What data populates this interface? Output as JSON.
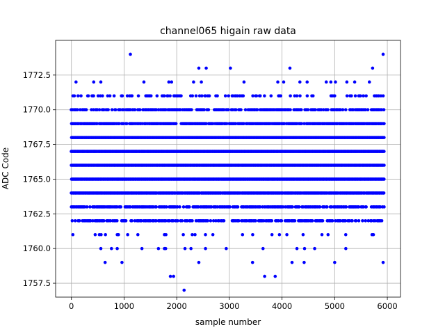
{
  "chart_data": {
    "type": "scatter",
    "title": "channel065 higain raw data",
    "xlabel": "sample number",
    "ylabel": "ADC Code",
    "xlim": [
      -300,
      6250
    ],
    "ylim": [
      1756.5,
      1775.0
    ],
    "xticks": [
      0,
      1000,
      2000,
      3000,
      4000,
      5000,
      6000
    ],
    "xtick_labels": [
      "0",
      "1000",
      "2000",
      "3000",
      "4000",
      "5000",
      "6000"
    ],
    "yticks": [
      1757.5,
      1760.0,
      1762.5,
      1765.0,
      1767.5,
      1770.0,
      1772.5
    ],
    "ytick_labels": [
      "1757.5",
      "1760.0",
      "1762.5",
      "1765.0",
      "1767.5",
      "1770.0",
      "1772.5"
    ],
    "grid": true,
    "marker_color": "#0000ff",
    "series": [
      {
        "x_range": [
          0,
          5940
        ],
        "dense_levels": [
          1762,
          1763,
          1764,
          1765,
          1766,
          1767,
          1768,
          1769,
          1770,
          1771
        ],
        "level_density": {
          "1762": 0.55,
          "1763": 0.6,
          "1764": 0.95,
          "1765": 1.0,
          "1766": 1.0,
          "1767": 1.0,
          "1768": 1.0,
          "1769": 0.8,
          "1770": 0.55,
          "1771": 0.25
        },
        "sparse_levels": [
          1761,
          1760,
          1772
        ],
        "sparse_density": {
          "1761": 0.18,
          "1760": 0.05,
          "1772": 0.1
        },
        "outliers": [
          {
            "x": 1120,
            "y": 1774
          },
          {
            "x": 5920,
            "y": 1774
          },
          {
            "x": 2420,
            "y": 1773
          },
          {
            "x": 2560,
            "y": 1773
          },
          {
            "x": 3020,
            "y": 1773
          },
          {
            "x": 4150,
            "y": 1773
          },
          {
            "x": 5720,
            "y": 1773
          },
          {
            "x": 640,
            "y": 1759
          },
          {
            "x": 960,
            "y": 1759
          },
          {
            "x": 2420,
            "y": 1759
          },
          {
            "x": 3440,
            "y": 1759
          },
          {
            "x": 4190,
            "y": 1759
          },
          {
            "x": 4420,
            "y": 1759
          },
          {
            "x": 5000,
            "y": 1759
          },
          {
            "x": 5920,
            "y": 1759
          },
          {
            "x": 1880,
            "y": 1758
          },
          {
            "x": 1940,
            "y": 1758
          },
          {
            "x": 3670,
            "y": 1758
          },
          {
            "x": 3870,
            "y": 1758
          },
          {
            "x": 2140,
            "y": 1757
          }
        ]
      }
    ]
  }
}
